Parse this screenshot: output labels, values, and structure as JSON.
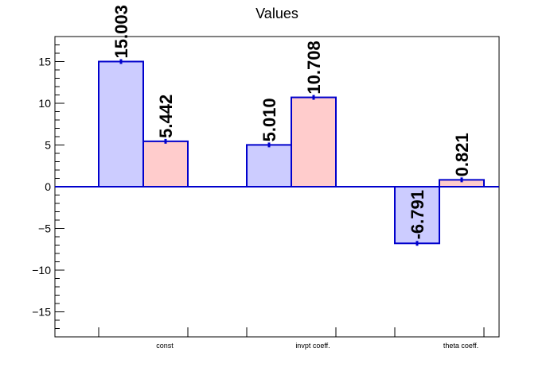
{
  "chart_data": {
    "type": "bar",
    "title": "Values",
    "xlabel": "",
    "ylabel": "",
    "ylim": [
      -18,
      18
    ],
    "yticks": [
      -15,
      -10,
      -5,
      0,
      5,
      10,
      15
    ],
    "ytick_labels": [
      "−15",
      "−10",
      "−5",
      "0",
      "5",
      "10",
      "15"
    ],
    "categories": [
      "const",
      "invpt coeff.",
      "theta coeff."
    ],
    "series": [
      {
        "values": [
          15.003,
          5.01,
          -6.791
        ],
        "labels": [
          "15.003",
          "5.010",
          "-6.791"
        ],
        "fill": "#ccccff",
        "stroke": "#0000cc"
      },
      {
        "values": [
          5.442,
          10.708,
          0.821
        ],
        "labels": [
          "5.442",
          "10.708",
          "0.821"
        ],
        "fill": "#ffcccc",
        "stroke": "#0000cc"
      }
    ],
    "grid": false,
    "legend": "none"
  }
}
